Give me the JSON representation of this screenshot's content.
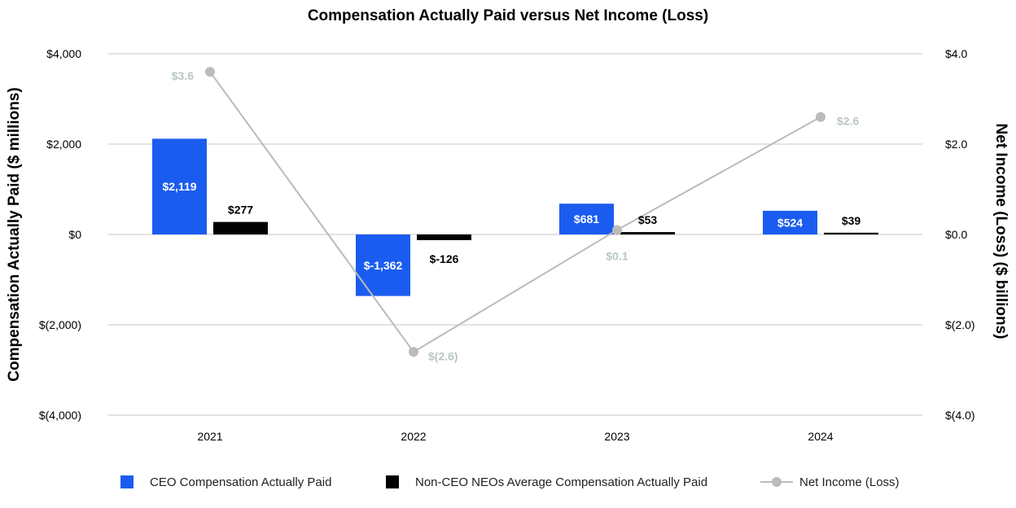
{
  "chart_data": {
    "type": "bar",
    "title": "Compensation Actually Paid versus Net Income (Loss)",
    "ylabel_left": "Compensation Actually Paid ($ millions)",
    "ylabel_right": "Net Income (Loss) ($ billions)",
    "categories": [
      "2021",
      "2022",
      "2023",
      "2024"
    ],
    "ylim_left": [
      -4000,
      4000
    ],
    "ylim_right": [
      -4.0,
      4.0
    ],
    "left_ticks": [
      {
        "value": 4000,
        "label": "$4,000"
      },
      {
        "value": 2000,
        "label": "$2,000"
      },
      {
        "value": 0,
        "label": "$0"
      },
      {
        "value": -2000,
        "label": "$(2,000)"
      },
      {
        "value": -4000,
        "label": "$(4,000)"
      }
    ],
    "right_ticks": [
      {
        "value": 4.0,
        "label": "$4.0"
      },
      {
        "value": 2.0,
        "label": "$2.0"
      },
      {
        "value": 0.0,
        "label": "$0.0"
      },
      {
        "value": -2.0,
        "label": "$(2.0)"
      },
      {
        "value": -4.0,
        "label": "$(4.0)"
      }
    ],
    "grid": true,
    "legend_position": "bottom",
    "series": [
      {
        "name": "CEO Compensation Actually Paid",
        "kind": "bar",
        "axis": "left",
        "color": "#1b5cf0",
        "values": [
          2119,
          -1362,
          681,
          524
        ],
        "labels": [
          "$2,119",
          "$-1,362",
          "$681",
          "$524"
        ]
      },
      {
        "name": "Non-CEO NEOs Average Compensation Actually Paid",
        "kind": "bar",
        "axis": "left",
        "color": "#000000",
        "values": [
          277,
          -126,
          53,
          39
        ],
        "labels": [
          "$277",
          "$-126",
          "$53",
          "$39"
        ]
      },
      {
        "name": "Net Income (Loss)",
        "kind": "line",
        "axis": "right",
        "color": "#bbbbbb",
        "label_color": "#b9c6c6",
        "values": [
          3.6,
          -2.6,
          0.1,
          2.6
        ],
        "labels": [
          "$3.6",
          "$(2.6)",
          "$0.1",
          "$2.6"
        ]
      }
    ]
  }
}
